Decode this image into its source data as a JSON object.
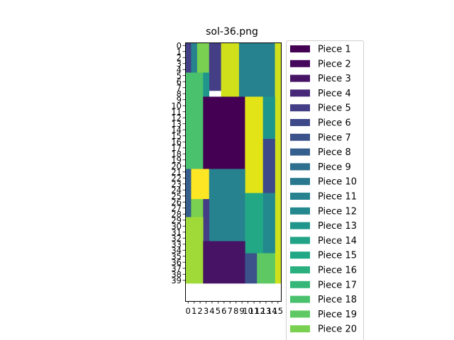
{
  "chart_data": {
    "type": "heatmap",
    "title": "sol-36.png",
    "xlabel": "",
    "ylabel": "",
    "grid_size": {
      "columns": 16,
      "rows": 40
    },
    "x_ticks": [
      0,
      1,
      2,
      3,
      4,
      5,
      6,
      7,
      8,
      9,
      10,
      11,
      12,
      13,
      14,
      15
    ],
    "y_ticks": [
      0,
      1,
      2,
      3,
      4,
      5,
      6,
      7,
      8,
      9,
      10,
      11,
      12,
      13,
      14,
      15,
      16,
      17,
      18,
      19,
      20,
      21,
      22,
      23,
      24,
      25,
      26,
      27,
      28,
      29,
      30,
      31,
      32,
      33,
      34,
      35,
      36,
      37,
      38,
      39
    ],
    "grid_on": false,
    "legend_position": "right",
    "pieces": [
      {
        "name": "Piece 1",
        "color": "#440154"
      },
      {
        "name": "Piece 2",
        "color": "#46085c"
      },
      {
        "name": "Piece 3",
        "color": "#471365"
      },
      {
        "name": "Piece 4",
        "color": "#482878"
      },
      {
        "name": "Piece 5",
        "color": "#433e85"
      },
      {
        "name": "Piece 6",
        "color": "#3e4989"
      },
      {
        "name": "Piece 7",
        "color": "#3b528b"
      },
      {
        "name": "Piece 8",
        "color": "#355f8d"
      },
      {
        "name": "Piece 9",
        "color": "#2e6e8e"
      },
      {
        "name": "Piece 10",
        "color": "#2a788e"
      },
      {
        "name": "Piece 11",
        "color": "#26828e"
      },
      {
        "name": "Piece 12",
        "color": "#23898e"
      },
      {
        "name": "Piece 13",
        "color": "#1f968b"
      },
      {
        "name": "Piece 14",
        "color": "#20a386"
      },
      {
        "name": "Piece 15",
        "color": "#22a884"
      },
      {
        "name": "Piece 16",
        "color": "#2ab07f"
      },
      {
        "name": "Piece 17",
        "color": "#35b779"
      },
      {
        "name": "Piece 18",
        "color": "#4ac16d"
      },
      {
        "name": "Piece 19",
        "color": "#5ec962"
      },
      {
        "name": "Piece 20",
        "color": "#7ad151"
      }
    ],
    "blocks": [
      {
        "col": 0,
        "row": 0,
        "cols": 1,
        "rows": 5,
        "color": "#433e85"
      },
      {
        "col": 1,
        "row": 0,
        "cols": 1,
        "rows": 5,
        "color": "#26828e"
      },
      {
        "col": 2,
        "row": 0,
        "cols": 2,
        "rows": 5,
        "color": "#7ad151"
      },
      {
        "col": 4,
        "row": 0,
        "cols": 2,
        "rows": 8,
        "color": "#433e85"
      },
      {
        "col": 6,
        "row": 0,
        "cols": 3,
        "rows": 9,
        "color": "#d0e11c"
      },
      {
        "col": 9,
        "row": 0,
        "cols": 6,
        "rows": 9,
        "color": "#26828e"
      },
      {
        "col": 15,
        "row": 0,
        "cols": 1,
        "rows": 40,
        "color": "#d0e11c"
      },
      {
        "col": 0,
        "row": 5,
        "cols": 3,
        "rows": 16,
        "color": "#4ac16d"
      },
      {
        "col": 3,
        "row": 5,
        "cols": 1,
        "rows": 4,
        "color": "#1f968b"
      },
      {
        "col": 3,
        "row": 9,
        "cols": 7,
        "rows": 12,
        "color": "#440154"
      },
      {
        "col": 10,
        "row": 9,
        "cols": 3,
        "rows": 16,
        "color": "#e2e418"
      },
      {
        "col": 13,
        "row": 9,
        "cols": 2,
        "rows": 7,
        "color": "#1f968b"
      },
      {
        "col": 13,
        "row": 16,
        "cols": 2,
        "rows": 5,
        "color": "#3e4989"
      },
      {
        "col": 0,
        "row": 21,
        "cols": 1,
        "rows": 8,
        "color": "#355f8d"
      },
      {
        "col": 1,
        "row": 21,
        "cols": 3,
        "rows": 5,
        "color": "#fde725"
      },
      {
        "col": 4,
        "row": 21,
        "cols": 6,
        "rows": 12,
        "color": "#26828e"
      },
      {
        "col": 13,
        "row": 21,
        "cols": 2,
        "rows": 4,
        "color": "#3e4989"
      },
      {
        "col": 13,
        "row": 25,
        "cols": 2,
        "rows": 8,
        "color": "#23898e"
      },
      {
        "col": 10,
        "row": 25,
        "cols": 3,
        "rows": 10,
        "color": "#22a884"
      },
      {
        "col": 1,
        "row": 26,
        "cols": 2,
        "rows": 4,
        "color": "#7ad151"
      },
      {
        "col": 3,
        "row": 26,
        "cols": 1,
        "rows": 7,
        "color": "#433e85"
      },
      {
        "col": 0,
        "row": 29,
        "cols": 3,
        "rows": 11,
        "color": "#a0da39"
      },
      {
        "col": 3,
        "row": 33,
        "cols": 7,
        "rows": 7,
        "color": "#471365"
      },
      {
        "col": 13,
        "row": 33,
        "cols": 2,
        "rows": 2,
        "color": "#23898e"
      },
      {
        "col": 10,
        "row": 35,
        "cols": 2,
        "rows": 5,
        "color": "#3b528b"
      },
      {
        "col": 12,
        "row": 35,
        "cols": 3,
        "rows": 5,
        "color": "#5ec962"
      }
    ]
  }
}
